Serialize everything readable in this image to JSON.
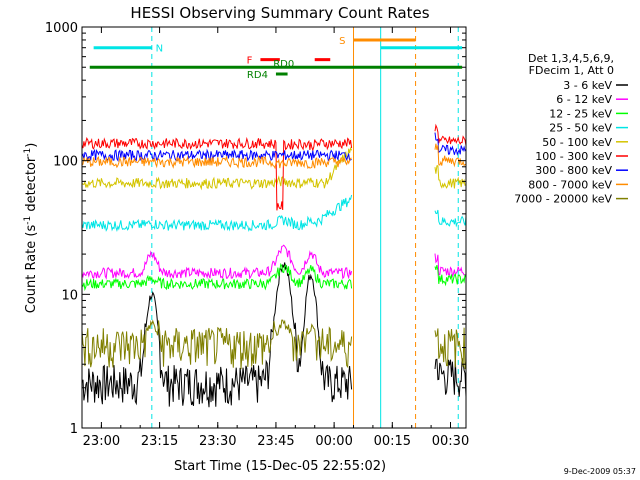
{
  "chart_data": {
    "type": "line",
    "title": "HESSI Observing Summary Count Rates",
    "xlabel": "Start Time (15-Dec-05 22:55:02)",
    "ylabel_main": "Count Rate (s",
    "ylabel_sup1": "-1",
    "ylabel_mid": " detector",
    "ylabel_sup2": "-1",
    "ylabel_end": ")",
    "footer": "9-Dec-2009 05:37",
    "y_scale": "log",
    "ylim": [
      1,
      1000
    ],
    "x_ticks": [
      {
        "label": "23:00",
        "min": 0
      },
      {
        "label": "23:15",
        "min": 15
      },
      {
        "label": "23:30",
        "min": 30
      },
      {
        "label": "23:45",
        "min": 45
      },
      {
        "label": "00:00",
        "min": 60
      },
      {
        "label": "00:15",
        "min": 75
      },
      {
        "label": "00:30",
        "min": 90
      }
    ],
    "y_ticks": [
      {
        "label": "1",
        "value": 1
      },
      {
        "label": "10",
        "value": 10
      },
      {
        "label": "100",
        "value": 100
      },
      {
        "label": "1000",
        "value": 1000
      }
    ],
    "legend_header": [
      "Det 1,3,4,5,6,9,",
      "FDecim 1, Att 0"
    ],
    "legend_placement": "right",
    "series": [
      {
        "name": "3 - 6 keV",
        "color": "#000000",
        "base": 2.2,
        "peak1": 10,
        "peak2": 17,
        "post": 2.5
      },
      {
        "name": "6 - 12 keV",
        "color": "#ff00ff",
        "base": 14.5,
        "peak1": 20,
        "peak2": 22,
        "post": 15
      },
      {
        "name": "12 - 25 keV",
        "color": "#00ff00",
        "base": 12,
        "peak1": 13,
        "peak2": 16,
        "post": 13
      },
      {
        "name": "25 - 50 keV",
        "color": "#00e5e5",
        "base": 33,
        "peak1": 34,
        "peak2": 36,
        "post": 35
      },
      {
        "name": "50 - 100 keV",
        "color": "#d4c400",
        "base": 68,
        "peak1": 68,
        "peak2": 70,
        "post": 68
      },
      {
        "name": "100 - 300 keV",
        "color": "#ff0000",
        "base": 135,
        "peak1": 135,
        "peak2": 130,
        "post": 140
      },
      {
        "name": "300 - 800 keV",
        "color": "#0000ff",
        "base": 110,
        "peak1": 110,
        "peak2": 110,
        "post": 120
      },
      {
        "name": "800 - 7000 keV",
        "color": "#ff8c00",
        "base": 98,
        "peak1": 98,
        "peak2": 95,
        "post": 100
      },
      {
        "name": "7000 - 20000 keV",
        "color": "#808000",
        "base": 4.2,
        "peak1": 6,
        "peak2": 6,
        "post": 4.2
      }
    ],
    "flags": [
      {
        "label": "N",
        "color": "#00e5e5",
        "value": 700,
        "segments": [
          [
            -2,
            13
          ],
          [
            72,
            93
          ]
        ]
      },
      {
        "label": "F",
        "color": "#ff0000",
        "value": 570,
        "segments": [
          [
            41,
            46
          ],
          [
            55,
            59
          ]
        ]
      },
      {
        "label": "RD0",
        "color": "#008000",
        "value": 500,
        "segments": [
          [
            -3,
            93
          ]
        ]
      },
      {
        "label": "RD4",
        "color": "#008000",
        "value": 445,
        "segments": [
          [
            45,
            48
          ]
        ]
      },
      {
        "label": "S",
        "color": "#ff8c00",
        "value": 800,
        "segments": [
          [
            65,
            81
          ]
        ]
      }
    ],
    "verticals": [
      {
        "min": 13,
        "color": "#00e5e5",
        "dashed": true
      },
      {
        "min": 65,
        "color": "#ff8c00",
        "dashed": false
      },
      {
        "min": 72,
        "color": "#00e5e5",
        "dashed": false
      },
      {
        "min": 81,
        "color": "#ff8c00",
        "dashed": true
      },
      {
        "min": 92,
        "color": "#00e5e5",
        "dashed": true
      }
    ]
  }
}
